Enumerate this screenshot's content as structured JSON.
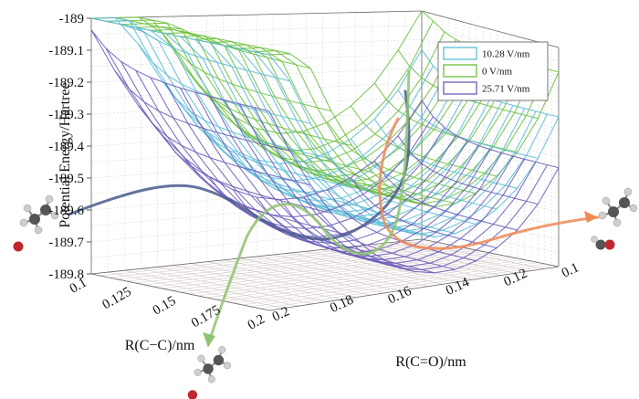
{
  "chart_data": {
    "type": "surface",
    "zlabel": "Potential Energy/Hartree",
    "xlabel": "R(C−C)/nm",
    "ylabel": "R(C=O)/nm",
    "z_ticks": [
      "-189",
      "-189.1",
      "-189.2",
      "-189.3",
      "-189.4",
      "-189.5",
      "-189.6",
      "-189.7",
      "-189.8"
    ],
    "x_ticks": [
      "0.1",
      "0.125",
      "0.15",
      "0.175",
      "0.2"
    ],
    "y_ticks": [
      "0.2",
      "0.18",
      "0.16",
      "0.14",
      "0.12",
      "0.1"
    ],
    "zlim": [
      -189.8,
      -189.0
    ],
    "xlim": [
      0.1,
      0.2
    ],
    "ylim": [
      0.1,
      0.2
    ],
    "grid": true,
    "legend_position": "top-right",
    "series": [
      {
        "name": "10.28 V/nm",
        "color": "#5bbcd6",
        "approx_min_energy": -189.62
      },
      {
        "name": "0      V/nm",
        "color": "#6cbf3c",
        "approx_min_energy": -189.52
      },
      {
        "name": "25.71 V/nm",
        "color": "#6a5ab8",
        "approx_min_energy": -189.74
      }
    ],
    "paths": [
      {
        "color": "#4a5a8c",
        "direction": "left"
      },
      {
        "color": "#ee8a55",
        "direction": "right"
      },
      {
        "color": "#8fc46e",
        "direction": "down"
      }
    ]
  }
}
